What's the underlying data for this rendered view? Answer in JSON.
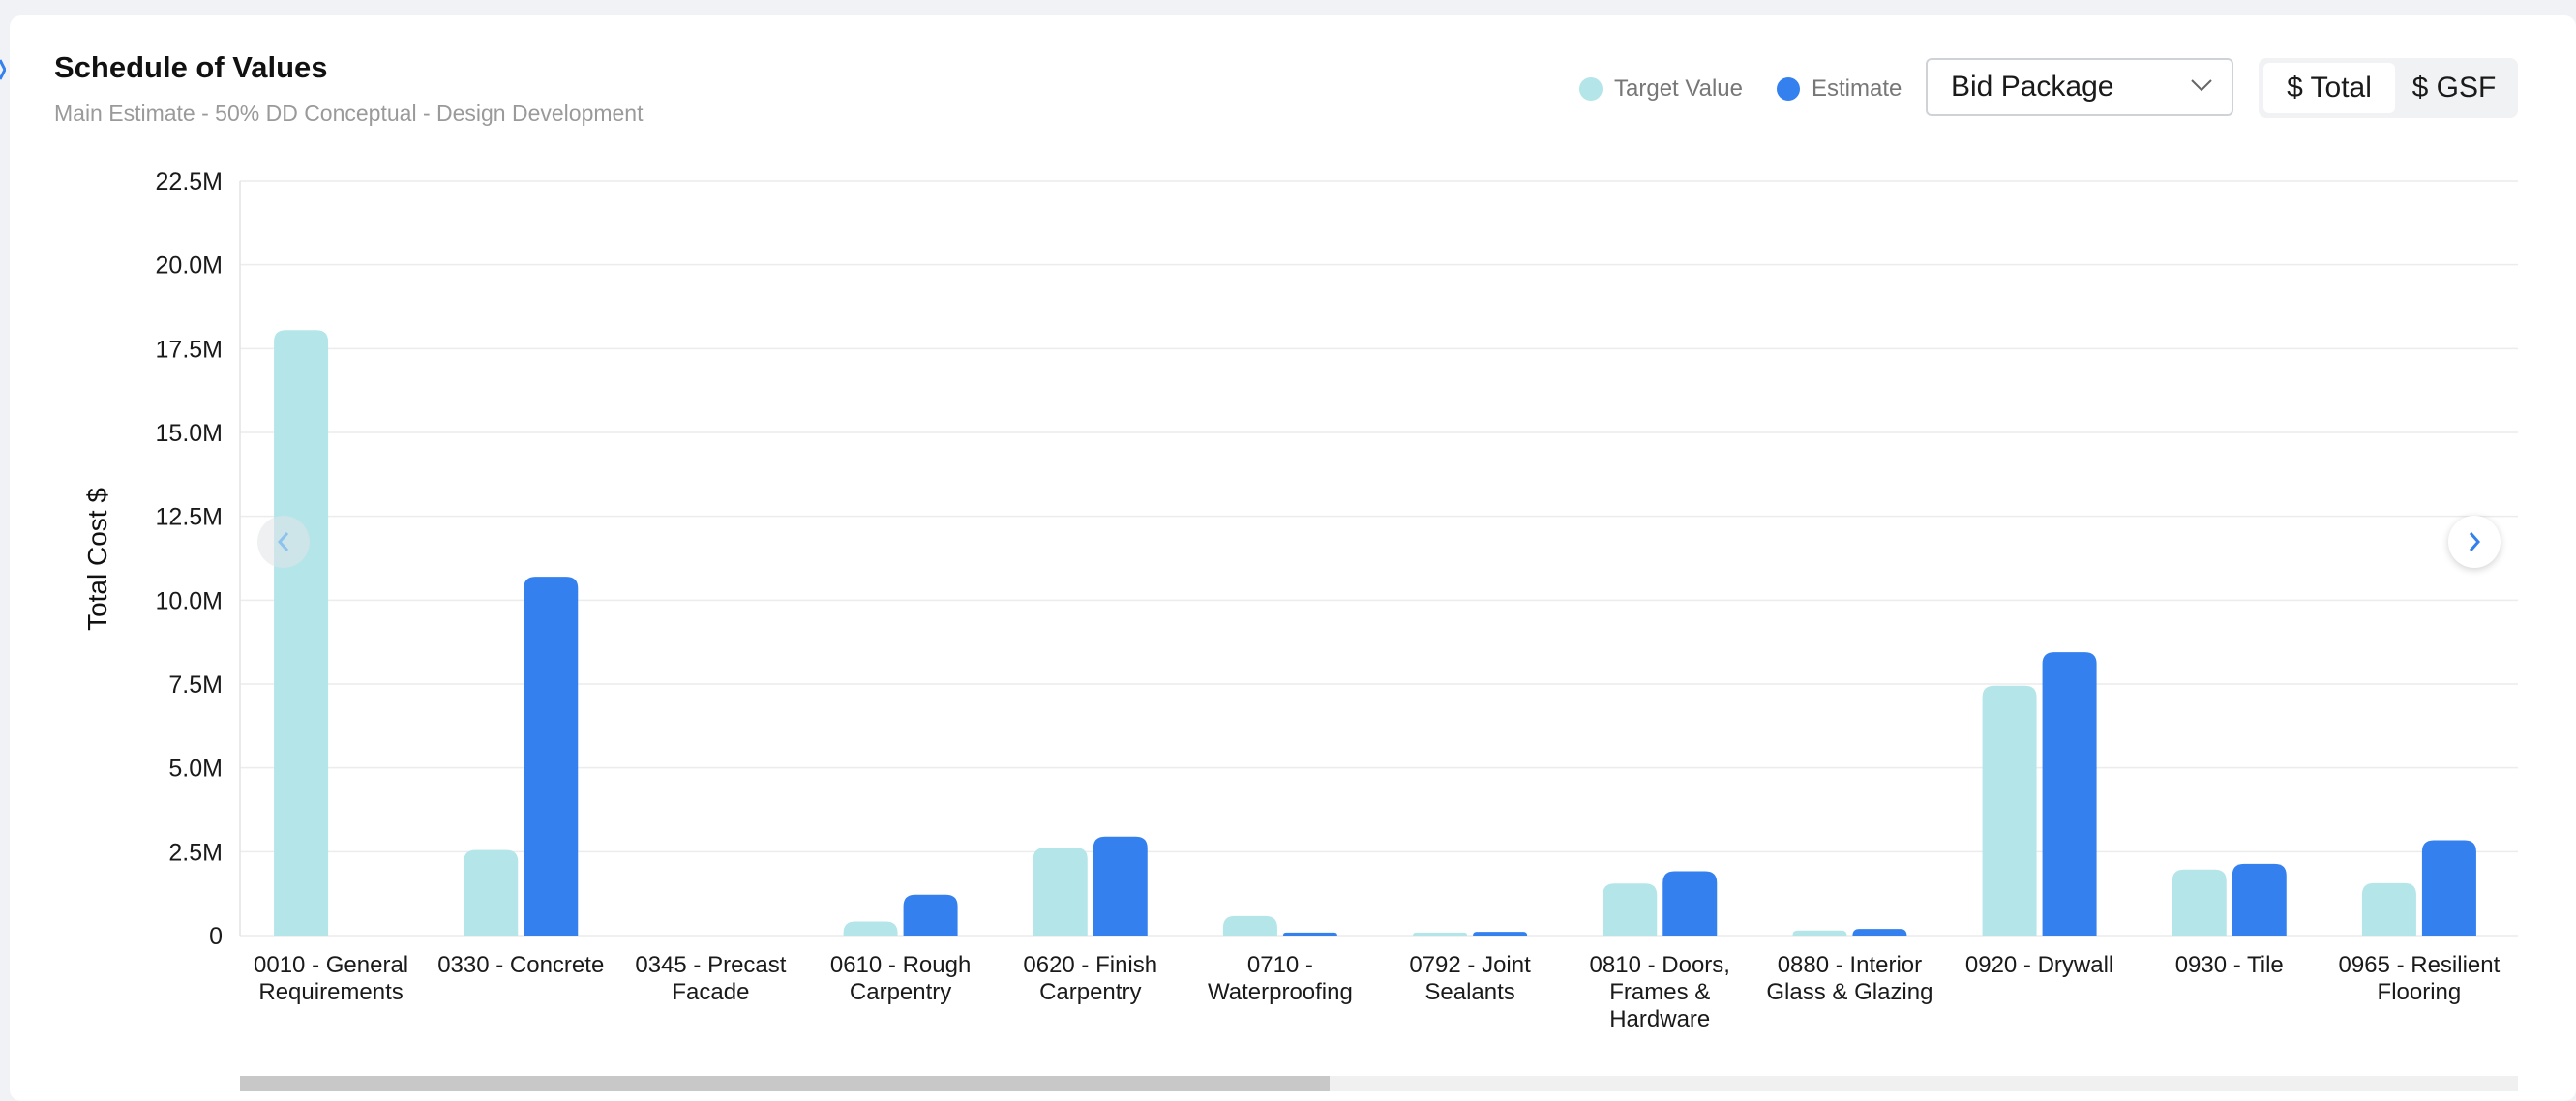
{
  "header": {
    "title": "Schedule of Values",
    "subtitle": "Main Estimate - 50% DD Conceptual - Design Development"
  },
  "legend": {
    "target_label": "Target Value",
    "estimate_label": "Estimate"
  },
  "controls": {
    "group_by_selected": "Bid Package",
    "toggle_total": "$ Total",
    "toggle_gsf": "$ GSF"
  },
  "colors": {
    "target": "#b3e5e9",
    "estimate": "#3380ee",
    "nav_icon": "#3380ee"
  },
  "icons": {
    "dropdown": "chevron-down-icon",
    "prev": "chevron-left-icon",
    "next": "chevron-right-icon"
  },
  "chart_data": {
    "type": "bar",
    "ylabel": "Total Cost $",
    "ylim": [
      0,
      22500000
    ],
    "yticks": [
      0,
      2500000,
      5000000,
      7500000,
      10000000,
      12500000,
      15000000,
      17500000,
      20000000,
      22500000
    ],
    "ytick_labels": [
      "0",
      "2.5M",
      "5.0M",
      "7.5M",
      "10.0M",
      "12.5M",
      "15.0M",
      "17.5M",
      "20.0M",
      "22.5M"
    ],
    "categories": [
      [
        "0010 - General",
        "Requirements"
      ],
      [
        "0330 - Concrete"
      ],
      [
        "0345 - Precast",
        "Facade"
      ],
      [
        "0610 - Rough",
        "Carpentry"
      ],
      [
        "0620 - Finish",
        "Carpentry"
      ],
      [
        "0710 -",
        "Waterproofing"
      ],
      [
        "0792 - Joint",
        "Sealants"
      ],
      [
        "0810 - Doors,",
        "Frames &",
        "Hardware"
      ],
      [
        "0880 - Interior",
        "Glass & Glazing"
      ],
      [
        "0920 - Drywall"
      ],
      [
        "0930 - Tile"
      ],
      [
        "0965 - Resilient",
        "Flooring"
      ]
    ],
    "series": [
      {
        "name": "Target Value",
        "values": [
          18050000,
          2550000,
          0,
          420000,
          2620000,
          580000,
          90000,
          1550000,
          150000,
          7450000,
          1970000,
          1560000
        ]
      },
      {
        "name": "Estimate",
        "values": [
          0,
          10700000,
          0,
          1220000,
          2950000,
          90000,
          110000,
          1920000,
          200000,
          8450000,
          2140000,
          2840000
        ]
      }
    ]
  }
}
